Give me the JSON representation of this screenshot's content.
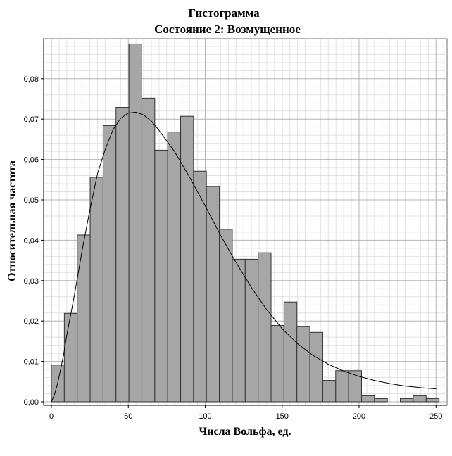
{
  "chart_data": {
    "type": "bar",
    "title": "Гистограмма",
    "subtitle": "Состояние 2: Возмущенное",
    "xlabel": "Числа Вольфа, ед.",
    "ylabel": "Относительная частота",
    "xlim": [
      -5,
      255
    ],
    "ylim": [
      0,
      0.09
    ],
    "bin_width": 8.4,
    "x_ticks": [
      0,
      50,
      100,
      150,
      200,
      250
    ],
    "x_tick_labels": [
      "0",
      "50",
      "100",
      "150",
      "200",
      "250"
    ],
    "y_ticks": [
      0,
      0.01,
      0.02,
      0.03,
      0.04,
      0.05,
      0.06,
      0.07,
      0.08
    ],
    "y_tick_labels": [
      "0,00",
      "0,01",
      "0,02",
      "0,03",
      "0,04",
      "0,05",
      "0,06",
      "0,07",
      "0,08"
    ],
    "grid": true,
    "bins": [
      {
        "x": 0.0,
        "value": 0.0091
      },
      {
        "x": 8.4,
        "value": 0.0219
      },
      {
        "x": 16.8,
        "value": 0.0413
      },
      {
        "x": 25.2,
        "value": 0.0556
      },
      {
        "x": 33.6,
        "value": 0.0684
      },
      {
        "x": 42.0,
        "value": 0.0729
      },
      {
        "x": 50.4,
        "value": 0.0886
      },
      {
        "x": 58.8,
        "value": 0.0752
      },
      {
        "x": 67.2,
        "value": 0.0623
      },
      {
        "x": 75.6,
        "value": 0.0668
      },
      {
        "x": 84.0,
        "value": 0.0707
      },
      {
        "x": 92.4,
        "value": 0.0571
      },
      {
        "x": 100.8,
        "value": 0.0533
      },
      {
        "x": 109.2,
        "value": 0.0427
      },
      {
        "x": 117.6,
        "value": 0.0353
      },
      {
        "x": 126.0,
        "value": 0.0353
      },
      {
        "x": 134.4,
        "value": 0.0369
      },
      {
        "x": 142.8,
        "value": 0.0189
      },
      {
        "x": 151.2,
        "value": 0.0247
      },
      {
        "x": 159.6,
        "value": 0.0187
      },
      {
        "x": 168.0,
        "value": 0.0172
      },
      {
        "x": 176.4,
        "value": 0.0053
      },
      {
        "x": 184.8,
        "value": 0.0077
      },
      {
        "x": 193.2,
        "value": 0.0077
      },
      {
        "x": 201.6,
        "value": 0.0015
      },
      {
        "x": 210.0,
        "value": 0.0008
      },
      {
        "x": 218.4,
        "value": 0.0
      },
      {
        "x": 226.8,
        "value": 0.0008
      },
      {
        "x": 235.2,
        "value": 0.0015
      },
      {
        "x": 243.6,
        "value": 0.0008
      }
    ],
    "fitted_curve": {
      "x": [
        0,
        2,
        4,
        6,
        8,
        10,
        15,
        20,
        25,
        30,
        35,
        40,
        45,
        50,
        55,
        60,
        65,
        70,
        80,
        90,
        100,
        110,
        120,
        130,
        140,
        150,
        160,
        170,
        180,
        190,
        200,
        210,
        220,
        230,
        240,
        250
      ],
      "y": [
        0.0,
        0.0018,
        0.0045,
        0.008,
        0.0118,
        0.0165,
        0.0265,
        0.0375,
        0.0475,
        0.0565,
        0.0625,
        0.0673,
        0.0702,
        0.0715,
        0.0717,
        0.071,
        0.0695,
        0.0672,
        0.062,
        0.0555,
        0.0485,
        0.0412,
        0.0345,
        0.0283,
        0.0228,
        0.0181,
        0.0144,
        0.0115,
        0.0093,
        0.0076,
        0.0063,
        0.0053,
        0.0045,
        0.0039,
        0.0035,
        0.0032
      ]
    }
  }
}
